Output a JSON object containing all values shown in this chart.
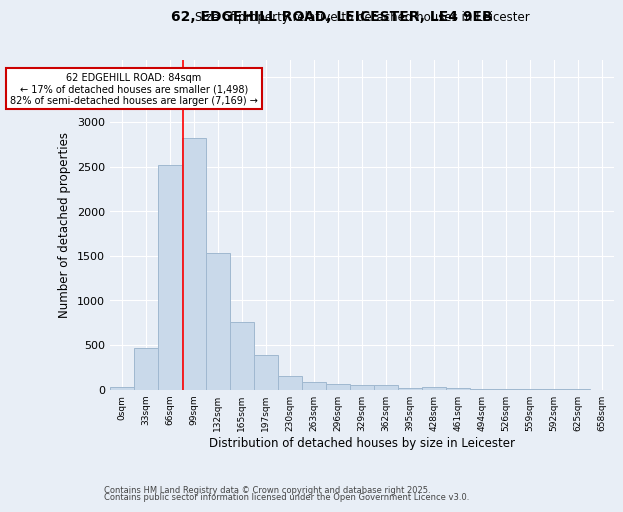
{
  "title1": "62, EDGEHILL ROAD, LEICESTER, LE4 9EB",
  "title2": "Size of property relative to detached houses in Leicester",
  "xlabel": "Distribution of detached houses by size in Leicester",
  "ylabel": "Number of detached properties",
  "bar_values": [
    30,
    470,
    2520,
    2820,
    1530,
    760,
    390,
    150,
    80,
    60,
    50,
    50,
    15,
    25,
    20,
    5,
    5,
    3,
    2,
    1,
    0
  ],
  "bin_labels": [
    "0sqm",
    "33sqm",
    "66sqm",
    "99sqm",
    "132sqm",
    "165sqm",
    "197sqm",
    "230sqm",
    "263sqm",
    "296sqm",
    "329sqm",
    "362sqm",
    "395sqm",
    "428sqm",
    "461sqm",
    "494sqm",
    "526sqm",
    "559sqm",
    "592sqm",
    "625sqm",
    "658sqm"
  ],
  "bar_color": "#c9d9ea",
  "bar_edge_color": "#a0b8d0",
  "red_line_x": 2.545,
  "annotation_title": "62 EDGEHILL ROAD: 84sqm",
  "annotation_line1": "← 17% of detached houses are smaller (1,498)",
  "annotation_line2": "82% of semi-detached houses are larger (7,169) →",
  "annotation_box_color": "#ffffff",
  "annotation_box_edge": "#cc0000",
  "ylim": [
    0,
    3700
  ],
  "yticks": [
    0,
    500,
    1000,
    1500,
    2000,
    2500,
    3000,
    3500
  ],
  "footnote1": "Contains HM Land Registry data © Crown copyright and database right 2025.",
  "footnote2": "Contains public sector information licensed under the Open Government Licence v3.0.",
  "bg_color": "#e8eef6"
}
